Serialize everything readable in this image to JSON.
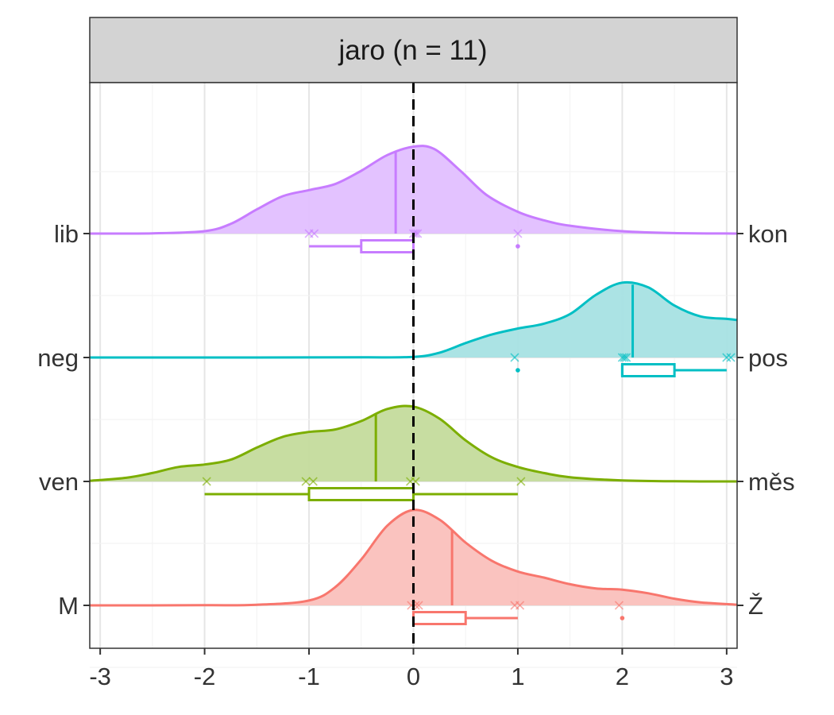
{
  "chart_data": {
    "type": "density-ridgeline",
    "facet_title": "jaro (n = 11)",
    "xlabel": "",
    "ylabel": "",
    "xlim": [
      -3.1,
      3.1
    ],
    "x_ticks": [
      "-3",
      "-2",
      "-1",
      "0",
      "1",
      "2",
      "3"
    ],
    "x_tick_values": [
      -3,
      -2,
      -1,
      0,
      1,
      2,
      3
    ],
    "reference_line_x": 0,
    "grid": true,
    "rows": [
      {
        "left_label": "lib",
        "right_label": "kon",
        "color": "#C77CFF",
        "fill": "#E2BFFF",
        "density_peak": 0.72,
        "density": [
          [
            -3.1,
            0
          ],
          [
            -2.5,
            0.002
          ],
          [
            -2.0,
            0.02
          ],
          [
            -1.75,
            0.08
          ],
          [
            -1.5,
            0.2
          ],
          [
            -1.25,
            0.31
          ],
          [
            -1.0,
            0.36
          ],
          [
            -0.75,
            0.41
          ],
          [
            -0.5,
            0.52
          ],
          [
            -0.25,
            0.65
          ],
          [
            0.0,
            0.72
          ],
          [
            0.2,
            0.7
          ],
          [
            0.45,
            0.52
          ],
          [
            0.7,
            0.32
          ],
          [
            1.0,
            0.18
          ],
          [
            1.25,
            0.11
          ],
          [
            1.5,
            0.065
          ],
          [
            2.0,
            0.02
          ],
          [
            2.5,
            0.004
          ],
          [
            3.1,
            0
          ]
        ],
        "mean": -0.17,
        "points": [
          -1.0,
          -0.95,
          0.0,
          0.02,
          0.04,
          1.0
        ],
        "box": {
          "whisker_low": -1.0,
          "q1": -0.5,
          "median": 0.0,
          "q3": 0.0,
          "whisker_high": 0.0
        },
        "outliers": [
          1.0
        ]
      },
      {
        "left_label": "neg",
        "right_label": "pos",
        "color": "#00BFC4",
        "fill": "#A6E2E3",
        "density_peak": 0.62,
        "density": [
          [
            -3.1,
            0
          ],
          [
            -1.5,
            0
          ],
          [
            -0.5,
            0.001
          ],
          [
            0.0,
            0.005
          ],
          [
            0.25,
            0.04
          ],
          [
            0.5,
            0.12
          ],
          [
            0.75,
            0.19
          ],
          [
            1.0,
            0.24
          ],
          [
            1.25,
            0.28
          ],
          [
            1.5,
            0.36
          ],
          [
            1.75,
            0.52
          ],
          [
            2.0,
            0.62
          ],
          [
            2.25,
            0.58
          ],
          [
            2.5,
            0.43
          ],
          [
            2.75,
            0.34
          ],
          [
            3.0,
            0.32
          ],
          [
            3.1,
            0.31
          ]
        ],
        "mean": 2.1,
        "points": [
          0.97,
          2.0,
          2.02,
          2.04,
          3.0,
          3.04
        ],
        "box": {
          "whisker_low": 2.0,
          "q1": 2.0,
          "median": 2.0,
          "q3": 2.5,
          "whisker_high": 3.0
        },
        "outliers": [
          1.0
        ]
      },
      {
        "left_label": "ven",
        "right_label": "měs",
        "color": "#7CAE00",
        "fill": "#C4DB9C",
        "density_peak": 0.62,
        "density": [
          [
            -3.1,
            0.005
          ],
          [
            -2.75,
            0.03
          ],
          [
            -2.5,
            0.07
          ],
          [
            -2.25,
            0.12
          ],
          [
            -2.0,
            0.14
          ],
          [
            -1.75,
            0.18
          ],
          [
            -1.5,
            0.28
          ],
          [
            -1.25,
            0.37
          ],
          [
            -1.0,
            0.41
          ],
          [
            -0.75,
            0.43
          ],
          [
            -0.5,
            0.5
          ],
          [
            -0.25,
            0.6
          ],
          [
            0.0,
            0.62
          ],
          [
            0.25,
            0.52
          ],
          [
            0.5,
            0.34
          ],
          [
            0.75,
            0.2
          ],
          [
            1.0,
            0.12
          ],
          [
            1.25,
            0.07
          ],
          [
            1.5,
            0.035
          ],
          [
            2.0,
            0.008
          ],
          [
            2.5,
            0.001
          ],
          [
            3.1,
            0
          ]
        ],
        "mean": -0.36,
        "points": [
          -1.98,
          -1.03,
          -0.96,
          -0.03,
          0.02,
          1.03
        ],
        "box": {
          "whisker_low": -2.0,
          "q1": -1.0,
          "median": 0.0,
          "q3": 0.0,
          "whisker_high": 1.0
        },
        "outliers": []
      },
      {
        "left_label": "M",
        "right_label": "Ž",
        "color": "#F8766D",
        "fill": "#FAC0BC",
        "density_peak": 0.79,
        "density": [
          [
            -3.1,
            0
          ],
          [
            -2.0,
            0.001
          ],
          [
            -1.5,
            0.005
          ],
          [
            -1.0,
            0.04
          ],
          [
            -0.75,
            0.15
          ],
          [
            -0.5,
            0.38
          ],
          [
            -0.25,
            0.66
          ],
          [
            0.0,
            0.79
          ],
          [
            0.25,
            0.71
          ],
          [
            0.5,
            0.52
          ],
          [
            0.75,
            0.37
          ],
          [
            1.0,
            0.28
          ],
          [
            1.25,
            0.23
          ],
          [
            1.5,
            0.175
          ],
          [
            1.75,
            0.14
          ],
          [
            2.0,
            0.13
          ],
          [
            2.25,
            0.1
          ],
          [
            2.5,
            0.055
          ],
          [
            2.75,
            0.025
          ],
          [
            3.1,
            0.005
          ]
        ],
        "mean": 0.37,
        "points": [
          -0.02,
          0.02,
          0.05,
          0.97,
          1.02,
          1.97
        ],
        "box": {
          "whisker_low": 0.0,
          "q1": 0.0,
          "median": 0.0,
          "q3": 0.5,
          "whisker_high": 1.0
        },
        "outliers": [
          2.0
        ]
      }
    ]
  }
}
